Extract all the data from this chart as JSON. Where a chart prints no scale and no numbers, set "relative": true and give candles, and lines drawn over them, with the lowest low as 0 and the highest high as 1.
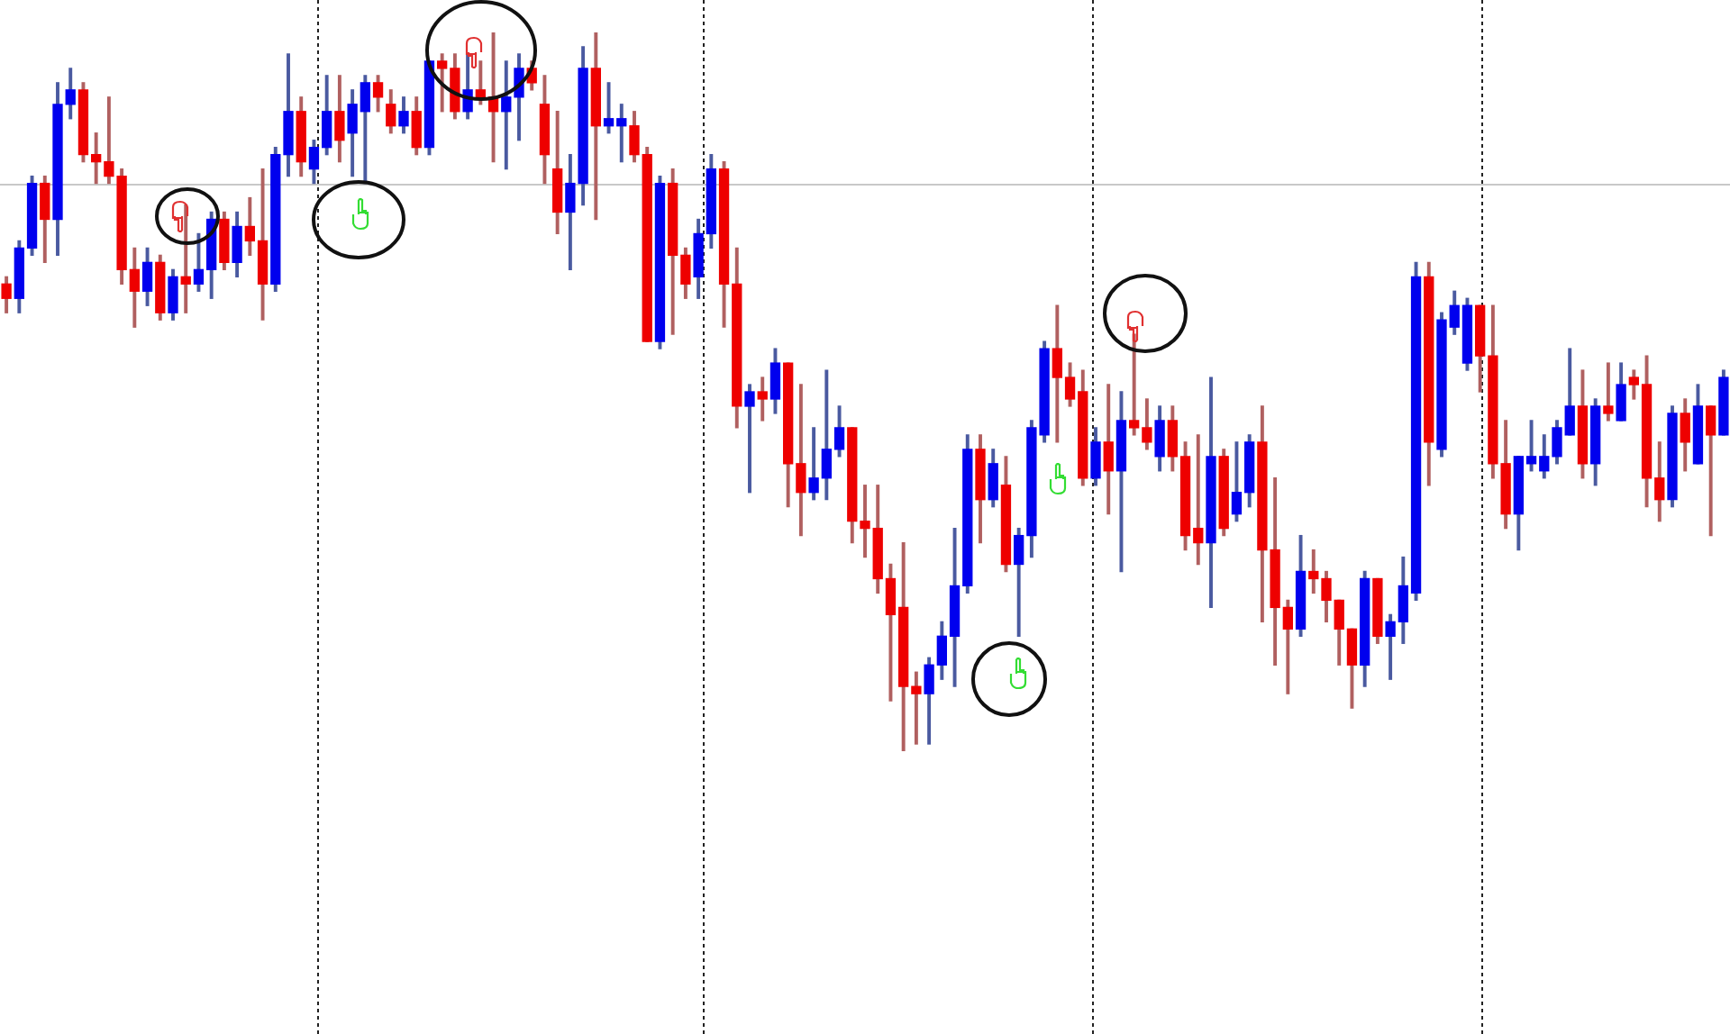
{
  "chart_data": {
    "type": "candlestick",
    "relative": true,
    "tick_labels": false,
    "categories": [
      null,
      null,
      null,
      null,
      null,
      null,
      null,
      null,
      null,
      null,
      null,
      null,
      null,
      null,
      null,
      null,
      null,
      null,
      null,
      null,
      null,
      null,
      null,
      null,
      null,
      null,
      null,
      null,
      null,
      null,
      null,
      null,
      null,
      null,
      null,
      null,
      null,
      null,
      null,
      null,
      null,
      null,
      null,
      null,
      null,
      null,
      null,
      null,
      null,
      null,
      null,
      null,
      null,
      null,
      null,
      null,
      null,
      null,
      null,
      null,
      null,
      null,
      null,
      null,
      null,
      null,
      null,
      null,
      null,
      null,
      null,
      null,
      null,
      null,
      null,
      null,
      null,
      null,
      null,
      null,
      null,
      null,
      null,
      null,
      null,
      null,
      null,
      null,
      null,
      null,
      null,
      null,
      null,
      null,
      null,
      null,
      null,
      null,
      null,
      null,
      null,
      null,
      null,
      null,
      null,
      null,
      null,
      null,
      null,
      null,
      null,
      null,
      null,
      null,
      null,
      null,
      null,
      null,
      null,
      null,
      null,
      null,
      null,
      null,
      null,
      null,
      null,
      null,
      null,
      null,
      null,
      null,
      null,
      null,
      null
    ],
    "ohlc": [
      [
        0.65,
        0.66,
        0.61,
        0.63
      ],
      [
        0.63,
        0.71,
        0.61,
        0.7
      ],
      [
        0.7,
        0.8,
        0.69,
        0.79
      ],
      [
        0.79,
        0.8,
        0.68,
        0.74
      ],
      [
        0.74,
        0.93,
        0.69,
        0.9
      ],
      [
        0.9,
        0.95,
        0.88,
        0.92
      ],
      [
        0.92,
        0.93,
        0.82,
        0.83
      ],
      [
        0.83,
        0.86,
        0.79,
        0.82
      ],
      [
        0.82,
        0.91,
        0.79,
        0.8
      ],
      [
        0.8,
        0.81,
        0.65,
        0.67
      ],
      [
        0.67,
        0.7,
        0.59,
        0.64
      ],
      [
        0.64,
        0.7,
        0.62,
        0.68
      ],
      [
        0.68,
        0.69,
        0.6,
        0.61
      ],
      [
        0.61,
        0.67,
        0.6,
        0.66
      ],
      [
        0.66,
        0.76,
        0.61,
        0.65
      ],
      [
        0.65,
        0.72,
        0.64,
        0.67
      ],
      [
        0.67,
        0.75,
        0.63,
        0.74
      ],
      [
        0.74,
        0.75,
        0.67,
        0.68
      ],
      [
        0.68,
        0.75,
        0.66,
        0.73
      ],
      [
        0.73,
        0.77,
        0.69,
        0.71
      ],
      [
        0.71,
        0.81,
        0.6,
        0.65
      ],
      [
        0.65,
        0.84,
        0.64,
        0.83
      ],
      [
        0.83,
        0.97,
        0.8,
        0.89
      ],
      [
        0.89,
        0.91,
        0.8,
        0.82
      ],
      [
        0.81,
        0.85,
        0.79,
        0.84
      ],
      [
        0.84,
        0.94,
        0.83,
        0.89
      ],
      [
        0.89,
        0.94,
        0.82,
        0.85
      ],
      [
        0.86,
        0.92,
        0.8,
        0.9
      ],
      [
        0.89,
        0.94,
        0.79,
        0.93
      ],
      [
        0.93,
        0.94,
        0.89,
        0.91
      ],
      [
        0.9,
        0.92,
        0.86,
        0.87
      ],
      [
        0.87,
        0.91,
        0.86,
        0.89
      ],
      [
        0.89,
        0.91,
        0.83,
        0.84
      ],
      [
        0.84,
        0.96,
        0.83,
        0.96
      ],
      [
        0.96,
        0.97,
        0.89,
        0.95
      ],
      [
        0.95,
        0.97,
        0.88,
        0.89
      ],
      [
        0.89,
        0.97,
        0.88,
        0.92
      ],
      [
        0.92,
        0.96,
        0.9,
        0.91
      ],
      [
        0.91,
        1,
        0.82,
        0.89
      ],
      [
        0.89,
        0.96,
        0.81,
        0.91
      ],
      [
        0.91,
        0.97,
        0.85,
        0.95
      ],
      [
        0.95,
        0.96,
        0.92,
        0.93
      ],
      [
        0.9,
        0.94,
        0.79,
        0.83
      ],
      [
        0.81,
        0.89,
        0.72,
        0.75
      ],
      [
        0.75,
        0.83,
        0.67,
        0.79
      ],
      [
        0.79,
        0.98,
        0.76,
        0.95
      ],
      [
        0.95,
        1,
        0.74,
        0.87
      ],
      [
        0.87,
        0.93,
        0.86,
        0.88
      ],
      [
        0.87,
        0.9,
        0.82,
        0.88
      ],
      [
        0.87,
        0.89,
        0.82,
        0.83
      ],
      [
        0.83,
        0.84,
        0.57,
        0.57
      ],
      [
        0.57,
        0.8,
        0.56,
        0.79
      ],
      [
        0.79,
        0.81,
        0.58,
        0.69
      ],
      [
        0.69,
        0.7,
        0.63,
        0.65
      ],
      [
        0.66,
        0.74,
        0.63,
        0.72
      ],
      [
        0.72,
        0.83,
        0.7,
        0.81
      ],
      [
        0.81,
        0.82,
        0.59,
        0.65
      ],
      [
        0.65,
        0.7,
        0.45,
        0.48
      ],
      [
        0.48,
        0.51,
        0.36,
        0.5
      ],
      [
        0.5,
        0.52,
        0.46,
        0.49
      ],
      [
        0.49,
        0.56,
        0.47,
        0.54
      ],
      [
        0.54,
        0.54,
        0.34,
        0.4
      ],
      [
        0.4,
        0.51,
        0.3,
        0.36
      ],
      [
        0.36,
        0.45,
        0.35,
        0.38
      ],
      [
        0.38,
        0.53,
        0.35,
        0.42
      ],
      [
        0.42,
        0.48,
        0.41,
        0.45
      ],
      [
        0.45,
        0.45,
        0.29,
        0.32
      ],
      [
        0.32,
        0.37,
        0.27,
        0.31
      ],
      [
        0.31,
        0.37,
        0.22,
        0.24
      ],
      [
        0.24,
        0.26,
        0.07,
        0.19
      ],
      [
        0.2,
        0.29,
        0,
        0.09
      ],
      [
        0.09,
        0.11,
        0.01,
        0.08
      ],
      [
        0.08,
        0.13,
        0.01,
        0.12
      ],
      [
        0.12,
        0.18,
        0.1,
        0.16
      ],
      [
        0.16,
        0.31,
        0.09,
        0.23
      ],
      [
        0.23,
        0.44,
        0.22,
        0.42
      ],
      [
        0.42,
        0.44,
        0.29,
        0.35
      ],
      [
        0.35,
        0.42,
        0.34,
        0.4
      ],
      [
        0.37,
        0.41,
        0.25,
        0.26
      ],
      [
        0.26,
        0.31,
        0.16,
        0.3
      ],
      [
        0.3,
        0.46,
        0.27,
        0.45
      ],
      [
        0.44,
        0.57,
        0.43,
        0.56
      ],
      [
        0.56,
        0.62,
        0.43,
        0.52
      ],
      [
        0.52,
        0.54,
        0.48,
        0.49
      ],
      [
        0.5,
        0.53,
        0.37,
        0.38
      ],
      [
        0.38,
        0.45,
        0.37,
        0.43
      ],
      [
        0.43,
        0.51,
        0.33,
        0.39
      ],
      [
        0.39,
        0.5,
        0.25,
        0.46
      ],
      [
        0.46,
        0.58,
        0.44,
        0.45
      ],
      [
        0.45,
        0.49,
        0.42,
        0.43
      ],
      [
        0.41,
        0.48,
        0.39,
        0.46
      ],
      [
        0.46,
        0.48,
        0.39,
        0.41
      ],
      [
        0.41,
        0.43,
        0.28,
        0.3
      ],
      [
        0.31,
        0.44,
        0.26,
        0.29
      ],
      [
        0.29,
        0.52,
        0.2,
        0.41
      ],
      [
        0.41,
        0.42,
        0.3,
        0.31
      ],
      [
        0.33,
        0.43,
        0.32,
        0.36
      ],
      [
        0.36,
        0.44,
        0.34,
        0.43
      ],
      [
        0.43,
        0.48,
        0.18,
        0.28
      ],
      [
        0.28,
        0.38,
        0.12,
        0.2
      ],
      [
        0.2,
        0.21,
        0.08,
        0.17
      ],
      [
        0.17,
        0.3,
        0.16,
        0.25
      ],
      [
        0.25,
        0.28,
        0.22,
        0.24
      ],
      [
        0.24,
        0.25,
        0.18,
        0.21
      ],
      [
        0.21,
        0.21,
        0.12,
        0.17
      ],
      [
        0.17,
        0.17,
        0.06,
        0.12
      ],
      [
        0.12,
        0.25,
        0.09,
        0.24
      ],
      [
        0.24,
        0.24,
        0.15,
        0.16
      ],
      [
        0.16,
        0.19,
        0.1,
        0.18
      ],
      [
        0.18,
        0.27,
        0.15,
        0.23
      ],
      [
        0.22,
        0.68,
        0.21,
        0.66
      ],
      [
        0.66,
        0.68,
        0.37,
        0.43
      ],
      [
        0.42,
        0.61,
        0.41,
        0.6
      ],
      [
        0.59,
        0.64,
        0.58,
        0.62
      ],
      [
        0.54,
        0.63,
        0.53,
        0.62
      ],
      [
        0.62,
        0.62,
        0.5,
        0.55
      ],
      [
        0.55,
        0.62,
        0.38,
        0.4
      ],
      [
        0.4,
        0.46,
        0.31,
        0.33
      ],
      [
        0.33,
        0.41,
        0.28,
        0.41
      ],
      [
        0.4,
        0.46,
        0.39,
        0.41
      ],
      [
        0.39,
        0.44,
        0.38,
        0.41
      ],
      [
        0.41,
        0.46,
        0.4,
        0.45
      ],
      [
        0.44,
        0.56,
        0.44,
        0.48
      ],
      [
        0.48,
        0.53,
        0.38,
        0.4
      ],
      [
        0.4,
        0.49,
        0.37,
        0.48
      ],
      [
        0.48,
        0.54,
        0.46,
        0.47
      ],
      [
        0.46,
        0.54,
        0.46,
        0.51
      ],
      [
        0.52,
        0.53,
        0.49,
        0.51
      ],
      [
        0.51,
        0.55,
        0.34,
        0.38
      ],
      [
        0.38,
        0.43,
        0.32,
        0.35
      ],
      [
        0.35,
        0.48,
        0.34,
        0.47
      ],
      [
        0.47,
        0.49,
        0.39,
        0.43
      ],
      [
        0.4,
        0.51,
        0.4,
        0.48
      ],
      [
        0.48,
        0.48,
        0.3,
        0.44
      ],
      [
        0.44,
        0.53,
        0.44,
        0.52
      ]
    ],
    "ref_lines": [
      {
        "axis": "y",
        "value": 0.79,
        "color": "#c8c8c8"
      }
    ]
  }
}
